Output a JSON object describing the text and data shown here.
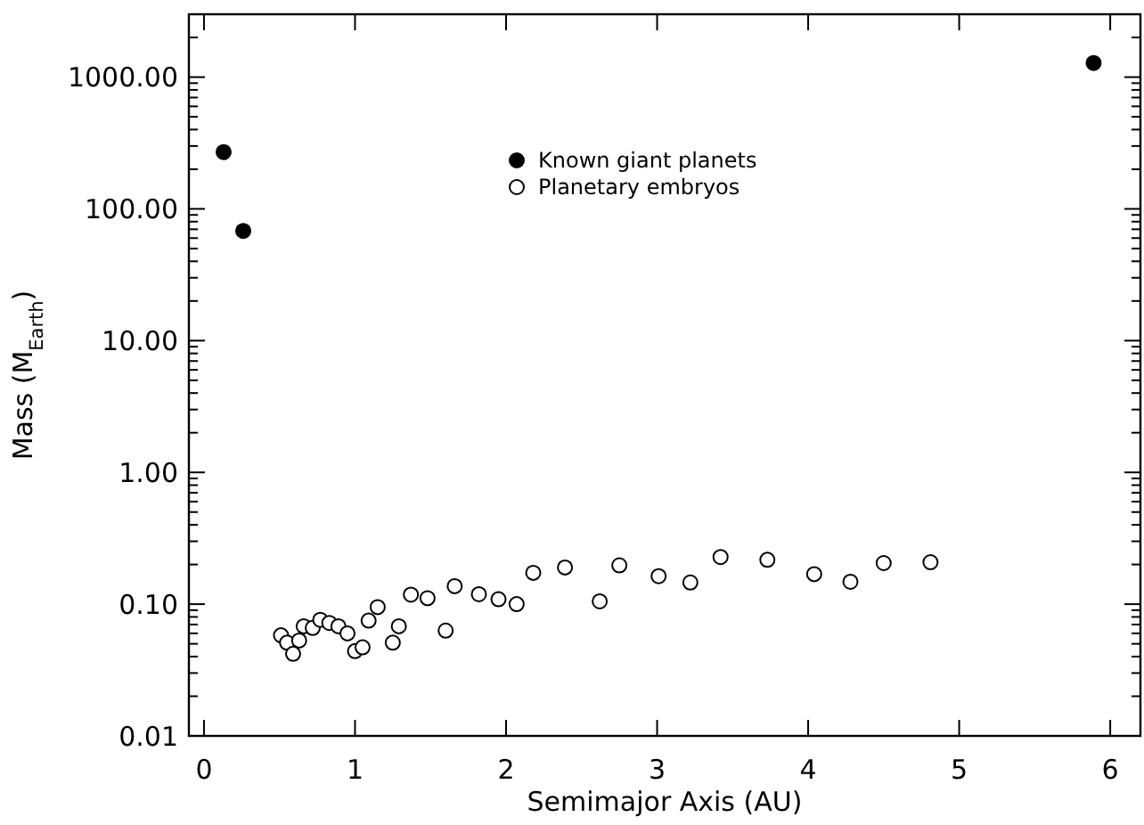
{
  "chart_data": {
    "type": "scatter",
    "xlabel": "Semimajor Axis (AU)",
    "ylabel": "Mass (M$_{Earth}$)",
    "log": "y",
    "grid": false,
    "legend": "top",
    "marker": "circle",
    "xlim": [
      -0.1,
      6.2
    ],
    "xticks": [
      0,
      1,
      2,
      3,
      4,
      5,
      6
    ],
    "ylim": [
      0.01,
      3000
    ],
    "yticks": [
      {
        "value": 0.01,
        "label": "0.01"
      },
      {
        "value": 0.1,
        "label": "0.10"
      },
      {
        "value": 1,
        "label": "1.00"
      },
      {
        "value": 10,
        "label": "10.00"
      },
      {
        "value": 100,
        "label": "100.00"
      },
      {
        "value": 1000,
        "label": "1000.00"
      }
    ],
    "series": [
      {
        "name": "Known giant planets",
        "color": "#000000",
        "x": [
          0.13,
          0.26,
          5.89
        ],
        "values": [
          270,
          68,
          1280
        ]
      },
      {
        "name": "Planetary embryos",
        "color": "#ffffff",
        "x": [
          0.51,
          0.55,
          0.59,
          0.63,
          0.66,
          0.72,
          0.77,
          0.83,
          0.89,
          0.95,
          1.0,
          1.05,
          1.09,
          1.15,
          1.25,
          1.29,
          1.37,
          1.48,
          1.6,
          1.66,
          1.82,
          1.95,
          2.07,
          2.18,
          2.39,
          2.62,
          2.75,
          3.01,
          3.22,
          3.42,
          3.73,
          4.04,
          4.28,
          4.5,
          4.81
        ],
        "values": [
          0.058,
          0.051,
          0.042,
          0.053,
          0.068,
          0.066,
          0.076,
          0.072,
          0.068,
          0.06,
          0.044,
          0.047,
          0.075,
          0.095,
          0.051,
          0.068,
          0.118,
          0.111,
          0.063,
          0.137,
          0.119,
          0.109,
          0.1,
          0.173,
          0.19,
          0.105,
          0.197,
          0.163,
          0.146,
          0.228,
          0.217,
          0.169,
          0.148,
          0.205,
          0.208
        ]
      }
    ]
  }
}
